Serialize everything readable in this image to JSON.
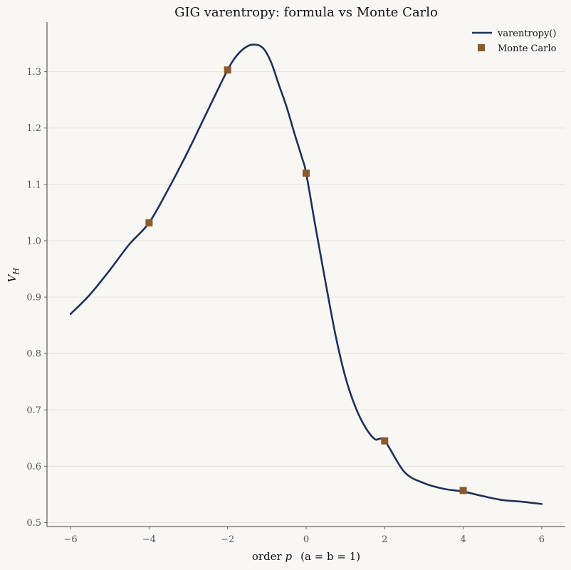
{
  "chart_data": {
    "type": "line",
    "title": "GIG varentropy: formula vs Monte Carlo",
    "xlabel_prefix": "order ",
    "xlabel_var": "p",
    "xlabel_suffix": "(a = b = 1)",
    "ylabel_main": "V",
    "ylabel_sub": "H",
    "xlim": [
      -6.6,
      6.6
    ],
    "ylim": [
      0.493,
      1.388
    ],
    "xticks": [
      -6,
      -4,
      -2,
      0,
      2,
      4,
      6
    ],
    "xtick_labels": [
      "−6",
      "−4",
      "−2",
      "0",
      "2",
      "4",
      "6"
    ],
    "yticks": [
      0.5,
      0.6,
      0.7,
      0.8,
      0.9,
      1.0,
      1.1,
      1.2,
      1.3
    ],
    "ytick_labels": [
      "0.5",
      "0.6",
      "0.7",
      "0.8",
      "0.9",
      "1.0",
      "1.1",
      "1.2",
      "1.3"
    ],
    "grid": "horizontal",
    "legend_position": "top-right",
    "series": [
      {
        "name": "varentropy()",
        "kind": "line",
        "color": "#1c3258",
        "x": [
          -6,
          -5.5,
          -5,
          -4.5,
          -4,
          -3.5,
          -3,
          -2.5,
          -2,
          -1.75,
          -1.5,
          -1.3,
          -1.1,
          -0.9,
          -0.7,
          -0.5,
          -0.3,
          -0.1,
          0,
          0.25,
          0.5,
          0.75,
          1,
          1.25,
          1.5,
          1.75,
          2,
          2.5,
          3,
          3.5,
          4,
          4.5,
          5,
          5.5,
          6
        ],
        "y": [
          0.87,
          0.905,
          0.948,
          0.994,
          1.032,
          1.093,
          1.16,
          1.232,
          1.303,
          1.33,
          1.345,
          1.348,
          1.342,
          1.318,
          1.278,
          1.238,
          1.191,
          1.146,
          1.12,
          1.02,
          0.924,
          0.832,
          0.758,
          0.706,
          0.67,
          0.648,
          0.645,
          0.59,
          0.57,
          0.56,
          0.555,
          0.547,
          0.54,
          0.537,
          0.533
        ]
      },
      {
        "name": "Monte Carlo",
        "kind": "scatter",
        "marker": "square",
        "color": "#8b5a2b",
        "x": [
          -4,
          -2,
          0,
          2,
          4
        ],
        "y": [
          1.032,
          1.303,
          1.12,
          0.645,
          0.557
        ]
      }
    ]
  }
}
